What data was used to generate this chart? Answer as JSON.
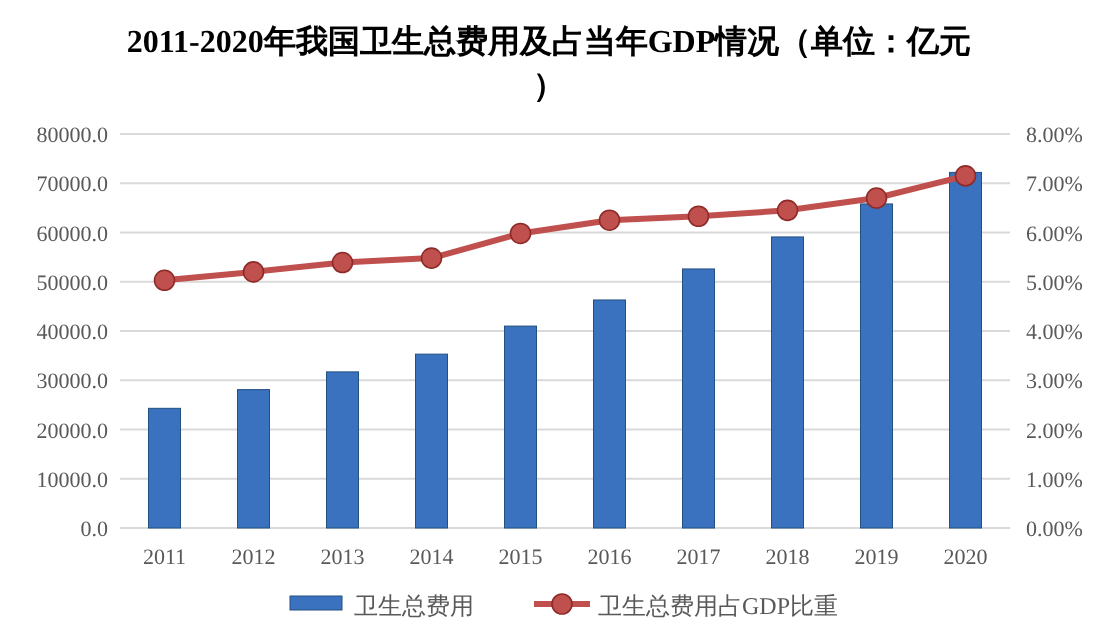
{
  "chart_data": {
    "type": "bar",
    "title": "2011-2020年我国卫生总费用及占当年GDP情况（单位：亿元）",
    "categories": [
      "2011",
      "2012",
      "2013",
      "2014",
      "2015",
      "2016",
      "2017",
      "2018",
      "2019",
      "2020"
    ],
    "series": [
      {
        "name": "卫生总费用",
        "color": "#3a72c0",
        "values": [
          24300,
          28100,
          31700,
          35300,
          41000,
          46300,
          52600,
          59100,
          65800,
          72200
        ]
      },
      {
        "name": "卫生总费用占GDP比重",
        "type": "line",
        "axis": "y2",
        "color": "#c0504d",
        "marker": "circle",
        "values": [
          5.03,
          5.2,
          5.39,
          5.48,
          5.98,
          6.25,
          6.33,
          6.45,
          6.7,
          7.15
        ]
      }
    ],
    "ylim": [
      0,
      80000
    ],
    "yticks": [
      {
        "value": 0,
        "label": "0.0"
      },
      {
        "value": 10000,
        "label": "10000.0"
      },
      {
        "value": 20000,
        "label": "20000.0"
      },
      {
        "value": 30000,
        "label": "30000.0"
      },
      {
        "value": 40000,
        "label": "40000.0"
      },
      {
        "value": 50000,
        "label": "50000.0"
      },
      {
        "value": 60000,
        "label": "60000.0"
      },
      {
        "value": 70000,
        "label": "70000.0"
      },
      {
        "value": 80000,
        "label": "80000.0"
      }
    ],
    "y2lim": [
      0,
      8
    ],
    "y2ticks": [
      {
        "value": 0,
        "label": "0.00%"
      },
      {
        "value": 1,
        "label": "1.00%"
      },
      {
        "value": 2,
        "label": "2.00%"
      },
      {
        "value": 3,
        "label": "3.00%"
      },
      {
        "value": 4,
        "label": "4.00%"
      },
      {
        "value": 5,
        "label": "5.00%"
      },
      {
        "value": 6,
        "label": "6.00%"
      },
      {
        "value": 7,
        "label": "7.00%"
      },
      {
        "value": 8,
        "label": "8.00%"
      }
    ],
    "grid": "y",
    "legend": "bottom"
  }
}
